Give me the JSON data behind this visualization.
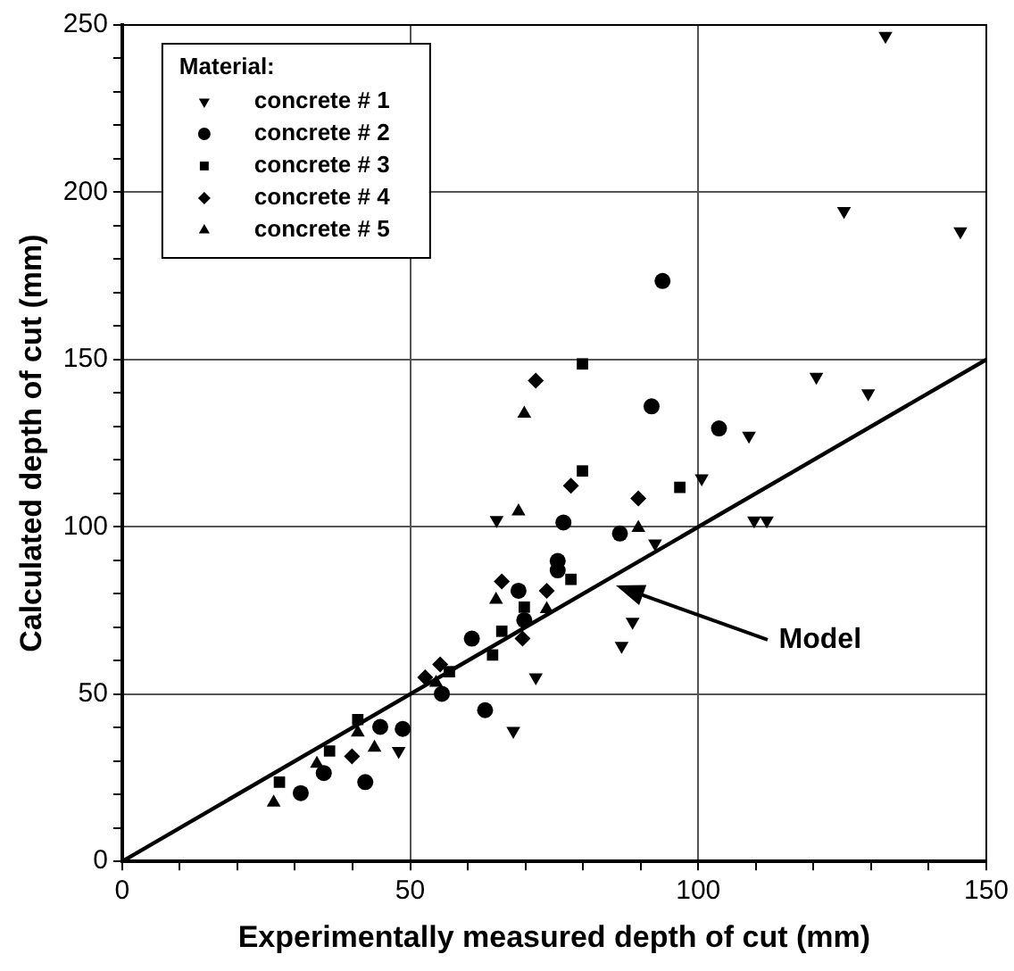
{
  "chart_data": {
    "type": "scatter",
    "xlabel": "Experimentally measured depth of cut (mm)",
    "ylabel": "Calculated depth of cut (mm)",
    "legend_title": "Material:",
    "legend": "top left",
    "grid": true,
    "xlim": [
      0,
      150
    ],
    "ylim": [
      0,
      250
    ],
    "xticks": [
      0,
      {
        "value": 10,
        "label": null
      },
      {
        "value": 20,
        "label": null
      },
      {
        "value": 30,
        "label": null
      },
      {
        "value": 40,
        "label": null
      },
      50,
      {
        "value": 60,
        "label": null
      },
      {
        "value": 70,
        "label": null
      },
      {
        "value": 80,
        "label": null
      },
      {
        "value": 90,
        "label": null
      },
      100,
      {
        "value": 110,
        "label": null
      },
      {
        "value": 120,
        "label": null
      },
      {
        "value": 130,
        "label": null
      },
      {
        "value": 140,
        "label": null
      },
      150
    ],
    "yticks": [
      0,
      {
        "value": 10,
        "label": null
      },
      {
        "value": 20,
        "label": null
      },
      {
        "value": 30,
        "label": null
      },
      {
        "value": 40,
        "label": null
      },
      50,
      {
        "value": 60,
        "label": null
      },
      {
        "value": 70,
        "label": null
      },
      {
        "value": 80,
        "label": null
      },
      {
        "value": 90,
        "label": null
      },
      100,
      {
        "value": 110,
        "label": null
      },
      {
        "value": 120,
        "label": null
      },
      {
        "value": 130,
        "label": null
      },
      {
        "value": 140,
        "label": null
      },
      150,
      {
        "value": 160,
        "label": null
      },
      {
        "value": 170,
        "label": null
      },
      {
        "value": 180,
        "label": null
      },
      {
        "value": 190,
        "label": null
      },
      200,
      {
        "value": 210,
        "label": null
      },
      {
        "value": 220,
        "label": null
      },
      {
        "value": 230,
        "label": null
      },
      {
        "value": 240,
        "label": null
      },
      250
    ],
    "annotations": [
      "Model"
    ],
    "series": [
      {
        "name": "concrete # 1",
        "color": "#000000",
        "marker": "triangle_down",
        "x": [
          132.5,
          125.3,
          145.5,
          120.5,
          129.5,
          108.8,
          100.6,
          109.7,
          111.9,
          92.5,
          88.6,
          86.7,
          71.8,
          67.9,
          65,
          48
        ],
        "values": [
          246.7,
          194.4,
          188.3,
          144.8,
          139.9,
          127.2,
          114.5,
          101.9,
          101.9,
          95,
          71.6,
          64.4,
          55,
          39,
          102,
          33
        ]
      },
      {
        "name": "concrete # 2",
        "color": "#000000",
        "marker": "circle",
        "x": [
          93.8,
          91.9,
          103.6,
          76.6,
          86.4,
          75.6,
          75.6,
          68.8,
          69.8,
          60.7,
          63,
          55.5,
          42.2,
          35,
          44.8,
          31,
          48.7
        ],
        "values": [
          173.5,
          136,
          129.4,
          101.3,
          98,
          89.8,
          87,
          80.9,
          72.1,
          66.6,
          45.2,
          50.1,
          23.7,
          26.4,
          40.2,
          20.4,
          39.6
        ]
      },
      {
        "name": "concrete # 3",
        "color": "#000000",
        "marker": "square",
        "x": [
          79.9,
          79.9,
          96.8,
          77.9,
          69.8,
          65.9,
          64.3,
          56.8,
          40.9,
          36,
          27.3
        ],
        "values": [
          148.7,
          116.7,
          111.8,
          84.3,
          76,
          68.8,
          61.7,
          56.7,
          42.4,
          33,
          23.7
        ]
      },
      {
        "name": "concrete # 4",
        "color": "#000000",
        "marker": "diamond",
        "x": [
          77.9,
          89.6,
          65.9,
          73.7,
          69.5,
          55.2,
          52.6,
          71.8,
          39.9
        ],
        "values": [
          112.3,
          108.5,
          83.7,
          80.9,
          66.6,
          58.9,
          55,
          143.7,
          31.4
        ]
      },
      {
        "name": "concrete # 5",
        "color": "#000000",
        "marker": "triangle",
        "x": [
          69.8,
          68.8,
          89.6,
          64.9,
          73.7,
          26.3,
          40.9,
          43.8,
          33.8,
          54.5
        ],
        "values": [
          133.8,
          104.6,
          99.7,
          78.2,
          75.4,
          17.6,
          38.5,
          34,
          29.2,
          53.4
        ]
      },
      {
        "type": "line",
        "color": "#000000",
        "marker": "none",
        "line_style": "solid",
        "x": [
          0,
          150
        ],
        "values": [
          0,
          150
        ]
      }
    ]
  }
}
